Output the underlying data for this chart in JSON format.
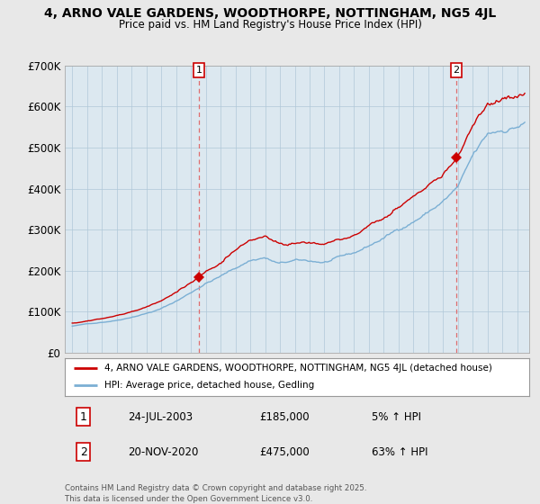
{
  "title": "4, ARNO VALE GARDENS, WOODTHORPE, NOTTINGHAM, NG5 4JL",
  "subtitle": "Price paid vs. HM Land Registry's House Price Index (HPI)",
  "ylim": [
    0,
    700000
  ],
  "yticks": [
    0,
    100000,
    200000,
    300000,
    400000,
    500000,
    600000,
    700000
  ],
  "ytick_labels": [
    "£0",
    "£100K",
    "£200K",
    "£300K",
    "£400K",
    "£500K",
    "£600K",
    "£700K"
  ],
  "xlim_left": 1994.5,
  "xlim_right": 2025.8,
  "sale1_date": 2003.55,
  "sale1_price": 185000,
  "sale1_label": "1",
  "sale1_date_str": "24-JUL-2003",
  "sale1_price_str": "£185,000",
  "sale1_hpi_str": "5% ↑ HPI",
  "sale2_date": 2020.88,
  "sale2_price": 475000,
  "sale2_label": "2",
  "sale2_date_str": "20-NOV-2020",
  "sale2_price_str": "£475,000",
  "sale2_hpi_str": "63% ↑ HPI",
  "legend_line1": "4, ARNO VALE GARDENS, WOODTHORPE, NOTTINGHAM, NG5 4JL (detached house)",
  "legend_line2": "HPI: Average price, detached house, Gedling",
  "footnote": "Contains HM Land Registry data © Crown copyright and database right 2025.\nThis data is licensed under the Open Government Licence v3.0.",
  "line_color_red": "#cc0000",
  "line_color_blue": "#7bafd4",
  "background_color": "#e8e8e8",
  "plot_bg_color": "#dce8f0",
  "grid_color": "#b0c8d8",
  "sale_marker_color": "#cc0000",
  "dashed_line_color": "#e06060"
}
